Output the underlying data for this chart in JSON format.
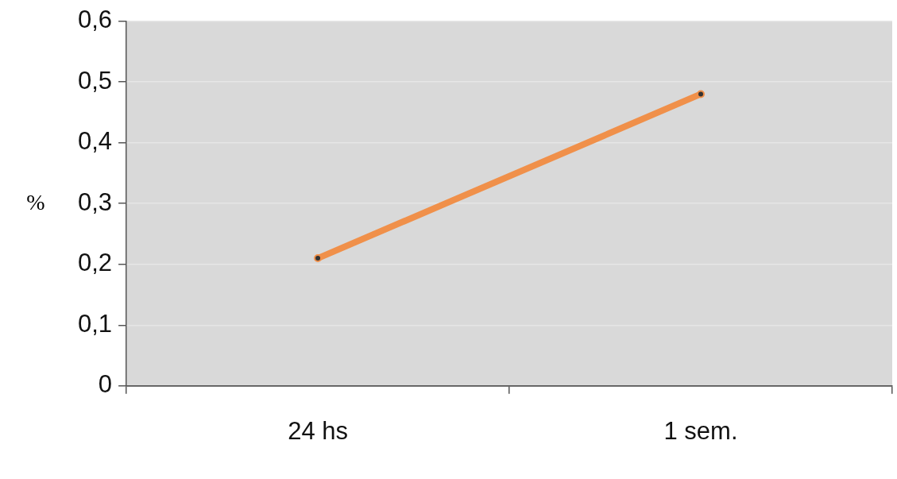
{
  "chart_data": {
    "type": "line",
    "ylabel": "%",
    "categories": [
      "24 hs",
      "1 sem."
    ],
    "series": [
      {
        "color": "#f0904a",
        "values": [
          0.21,
          0.48
        ]
      }
    ],
    "ylim": [
      0,
      0.6
    ],
    "yticks": [
      {
        "value": 0,
        "label": "0"
      },
      {
        "value": 0.1,
        "label": "0,1"
      },
      {
        "value": 0.2,
        "label": "0,2"
      },
      {
        "value": 0.3,
        "label": "0,3"
      },
      {
        "value": 0.4,
        "label": "0,4"
      },
      {
        "value": 0.5,
        "label": "0,5"
      },
      {
        "value": 0.6,
        "label": "0,6"
      }
    ],
    "grid": "y",
    "legend": false,
    "marker": "circle",
    "line_style": "solid"
  }
}
